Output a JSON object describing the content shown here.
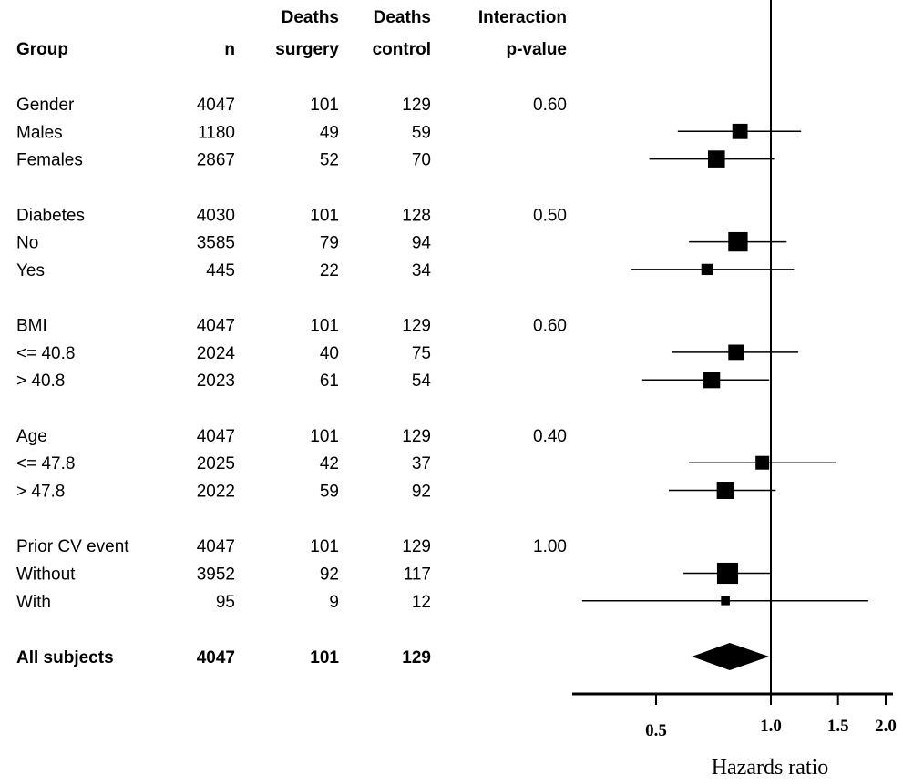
{
  "chart_data": {
    "type": "forest",
    "columns": {
      "group": "Group",
      "n": "n",
      "deaths_surgery": [
        "Deaths",
        "surgery"
      ],
      "deaths_control": [
        "Deaths",
        "control"
      ],
      "pvalue": [
        "Interaction",
        "p-value"
      ]
    },
    "rows": [
      {
        "group": "Gender",
        "n": "4047",
        "ds": "101",
        "dc": "129",
        "p": "0.60"
      },
      {
        "group": "Males",
        "n": "1180",
        "ds": "49",
        "dc": "59",
        "hr": 0.83,
        "lo": 0.57,
        "hi": 1.2,
        "weight": 0.6
      },
      {
        "group": "Females",
        "n": "2867",
        "ds": "52",
        "dc": "70",
        "hr": 0.72,
        "lo": 0.48,
        "hi": 1.02,
        "weight": 0.7
      },
      {
        "group": "Diabetes",
        "n": "4030",
        "ds": "101",
        "dc": "128",
        "p": "0.50"
      },
      {
        "group": "No",
        "n": "3585",
        "ds": "79",
        "dc": "94",
        "hr": 0.82,
        "lo": 0.61,
        "hi": 1.1,
        "weight": 0.85
      },
      {
        "group": "Yes",
        "n": "445",
        "ds": "22",
        "dc": "34",
        "hr": 0.68,
        "lo": 0.43,
        "hi": 1.15,
        "weight": 0.35
      },
      {
        "group": "BMI",
        "n": "4047",
        "ds": "101",
        "dc": "129",
        "p": "0.60"
      },
      {
        "group": "<= 40.8",
        "n": "2024",
        "ds": "40",
        "dc": "75",
        "hr": 0.81,
        "lo": 0.55,
        "hi": 1.18,
        "weight": 0.6
      },
      {
        "group": " > 40.8",
        "n": "2023",
        "ds": "61",
        "dc": "54",
        "hr": 0.7,
        "lo": 0.46,
        "hi": 0.99,
        "weight": 0.68
      },
      {
        "group": "Age",
        "n": "4047",
        "ds": "101",
        "dc": "129",
        "p": "0.40"
      },
      {
        "group": "<= 47.8",
        "n": "2025",
        "ds": "42",
        "dc": "37",
        "hr": 0.95,
        "lo": 0.61,
        "hi": 1.48,
        "weight": 0.5
      },
      {
        "group": " > 47.8",
        "n": "2022",
        "ds": "59",
        "dc": "92",
        "hr": 0.76,
        "lo": 0.54,
        "hi": 1.03,
        "weight": 0.72
      },
      {
        "group": "Prior CV event",
        "n": "4047",
        "ds": "101",
        "dc": "129",
        "p": "1.00"
      },
      {
        "group": "Without",
        "n": "3952",
        "ds": "92",
        "dc": "117",
        "hr": 0.77,
        "lo": 0.59,
        "hi": 1.0,
        "weight": 0.95
      },
      {
        "group": "With",
        "n": "95",
        "ds": "9",
        "dc": "12",
        "hr": 0.76,
        "lo": 0.32,
        "hi": 1.8,
        "weight": 0.2
      }
    ],
    "overall": {
      "group": "All subjects",
      "n": "4047",
      "ds": "101",
      "dc": "129",
      "hr": 0.78,
      "lo": 0.62,
      "hi": 0.99
    },
    "x_axis": {
      "scale": "log",
      "reference": 1.0,
      "xlim": [
        0.3,
        2.1
      ],
      "ticks": [
        0.5,
        1.0,
        1.5,
        2.0
      ],
      "tick_labels": [
        "0.5",
        "1.0",
        "1.5",
        "2.0"
      ],
      "label": "Hazards ratio"
    }
  }
}
